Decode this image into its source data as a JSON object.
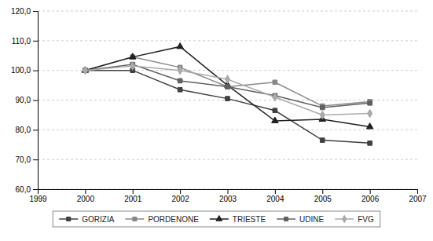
{
  "chart_data": {
    "type": "line",
    "x": [
      2000,
      2001,
      2002,
      2003,
      2004,
      2005,
      2006
    ],
    "series": [
      {
        "name": "GORIZIA",
        "color": "#404040",
        "marker": "square",
        "values": [
          100.0,
          100.0,
          93.5,
          90.5,
          86.5,
          76.5,
          75.5
        ]
      },
      {
        "name": "PORDENONE",
        "color": "#888888",
        "marker": "square",
        "values": [
          100.0,
          104.5,
          101.0,
          94.5,
          96.0,
          88.0,
          89.5
        ]
      },
      {
        "name": "TRIESTE",
        "color": "#202020",
        "marker": "triangle",
        "values": [
          100.0,
          104.5,
          108.0,
          95.0,
          83.0,
          83.5,
          81.0
        ]
      },
      {
        "name": "UDINE",
        "color": "#606060",
        "marker": "square",
        "values": [
          100.0,
          102.0,
          96.5,
          94.5,
          91.5,
          87.5,
          89.0
        ]
      },
      {
        "name": "FVG",
        "color": "#aaaaaa",
        "marker": "diamond",
        "values": [
          100.0,
          101.5,
          100.0,
          97.0,
          91.0,
          85.0,
          85.5
        ]
      }
    ],
    "xlim": [
      1999,
      2007
    ],
    "xticks": [
      1999,
      2000,
      2001,
      2002,
      2003,
      2004,
      2005,
      2006,
      2007
    ],
    "ylim": [
      60.0,
      120.0
    ],
    "yticks": [
      {
        "value": 60.0,
        "label": "60,0"
      },
      {
        "value": 70.0,
        "label": "70,0"
      },
      {
        "value": 80.0,
        "label": "80,0"
      },
      {
        "value": 90.0,
        "label": "90,0"
      },
      {
        "value": 100.0,
        "label": "100,0"
      },
      {
        "value": 110.0,
        "label": "110,0"
      },
      {
        "value": 120.0,
        "label": "120,0"
      }
    ],
    "grid": "y",
    "legend": "bottom"
  }
}
